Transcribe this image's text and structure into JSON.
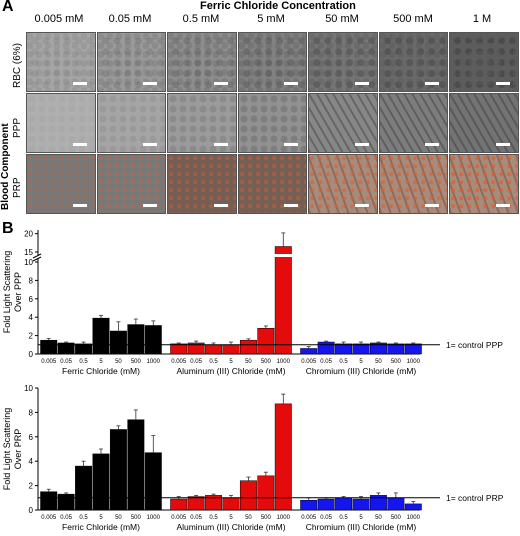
{
  "panel_a": {
    "letter": "A",
    "title": "Ferric Chloride Concentration",
    "concentrations": [
      "0.005 mM",
      "0.05 mM",
      "0.5 mM",
      "5 mM",
      "50 mM",
      "500 mM",
      "1 M"
    ],
    "side_label": "Blood Component",
    "rows": [
      "RBC (6%)",
      "PPP",
      "PRP"
    ]
  },
  "panel_b": {
    "letter": "B"
  },
  "chart_data": [
    {
      "type": "bar",
      "ylabel": "Fold Light Scattering Over PPP",
      "ylim": [
        0,
        21
      ],
      "yticks": [
        "0",
        "2",
        "4",
        "6",
        "8",
        "10",
        "15",
        "20"
      ],
      "axis_break": true,
      "reference_line": {
        "value": 1,
        "label": "1= control PPP"
      },
      "categories": [
        "0.005",
        "0.05",
        "0.5",
        "5",
        "50",
        "500",
        "1000"
      ],
      "groups": [
        {
          "name": "Ferric Chloride (mM)",
          "color": "#000000",
          "values": [
            1.5,
            1.2,
            1.1,
            3.9,
            2.5,
            3.2,
            3.1
          ],
          "errors": [
            0.2,
            0.1,
            0.2,
            0.3,
            1.0,
            0.6,
            0.5
          ]
        },
        {
          "name": "Aluminum (III) Chloride (mM)",
          "color": "#e30b0b",
          "values": [
            1.1,
            1.2,
            1.0,
            1.0,
            1.5,
            2.8,
            16.5
          ],
          "errors": [
            0.1,
            0.2,
            0.2,
            0.3,
            0.15,
            0.25,
            3.7
          ]
        },
        {
          "name": "Chromium (III) Chloride (mM)",
          "color": "#1515ee",
          "values": [
            0.6,
            1.3,
            1.1,
            1.1,
            1.2,
            1.1,
            1.1
          ],
          "errors": [
            0.2,
            0.1,
            0.2,
            0.2,
            0.1,
            0.1,
            0.1
          ]
        }
      ]
    },
    {
      "type": "bar",
      "ylabel": "Fold Light Scattering Over PRP",
      "ylim": [
        0,
        10
      ],
      "yticks": [
        "0",
        "2",
        "4",
        "6",
        "8",
        "10"
      ],
      "reference_line": {
        "value": 1,
        "label": "1= control PRP"
      },
      "categories": [
        "0.005",
        "0.05",
        "0.5",
        "5",
        "50",
        "500",
        "1000"
      ],
      "groups": [
        {
          "name": "Ferric Chloride (mM)",
          "color": "#000000",
          "values": [
            1.5,
            1.3,
            3.6,
            4.6,
            6.6,
            7.4,
            4.7
          ],
          "errors": [
            0.2,
            0.1,
            0.4,
            0.4,
            0.3,
            0.8,
            1.4
          ]
        },
        {
          "name": "Aluminum (III) Chloride (mM)",
          "color": "#e30b0b",
          "values": [
            0.9,
            1.1,
            1.2,
            1.0,
            2.4,
            2.8,
            8.7
          ],
          "errors": [
            0.2,
            0.1,
            0.1,
            0.2,
            0.3,
            0.3,
            0.8
          ]
        },
        {
          "name": "Chromium (III) Chloride (mM)",
          "color": "#1515ee",
          "values": [
            0.8,
            0.9,
            1.0,
            0.9,
            1.2,
            1.0,
            0.5
          ],
          "errors": [
            0.2,
            0.1,
            0.1,
            0.2,
            0.2,
            0.4,
            0.2
          ]
        }
      ]
    }
  ]
}
